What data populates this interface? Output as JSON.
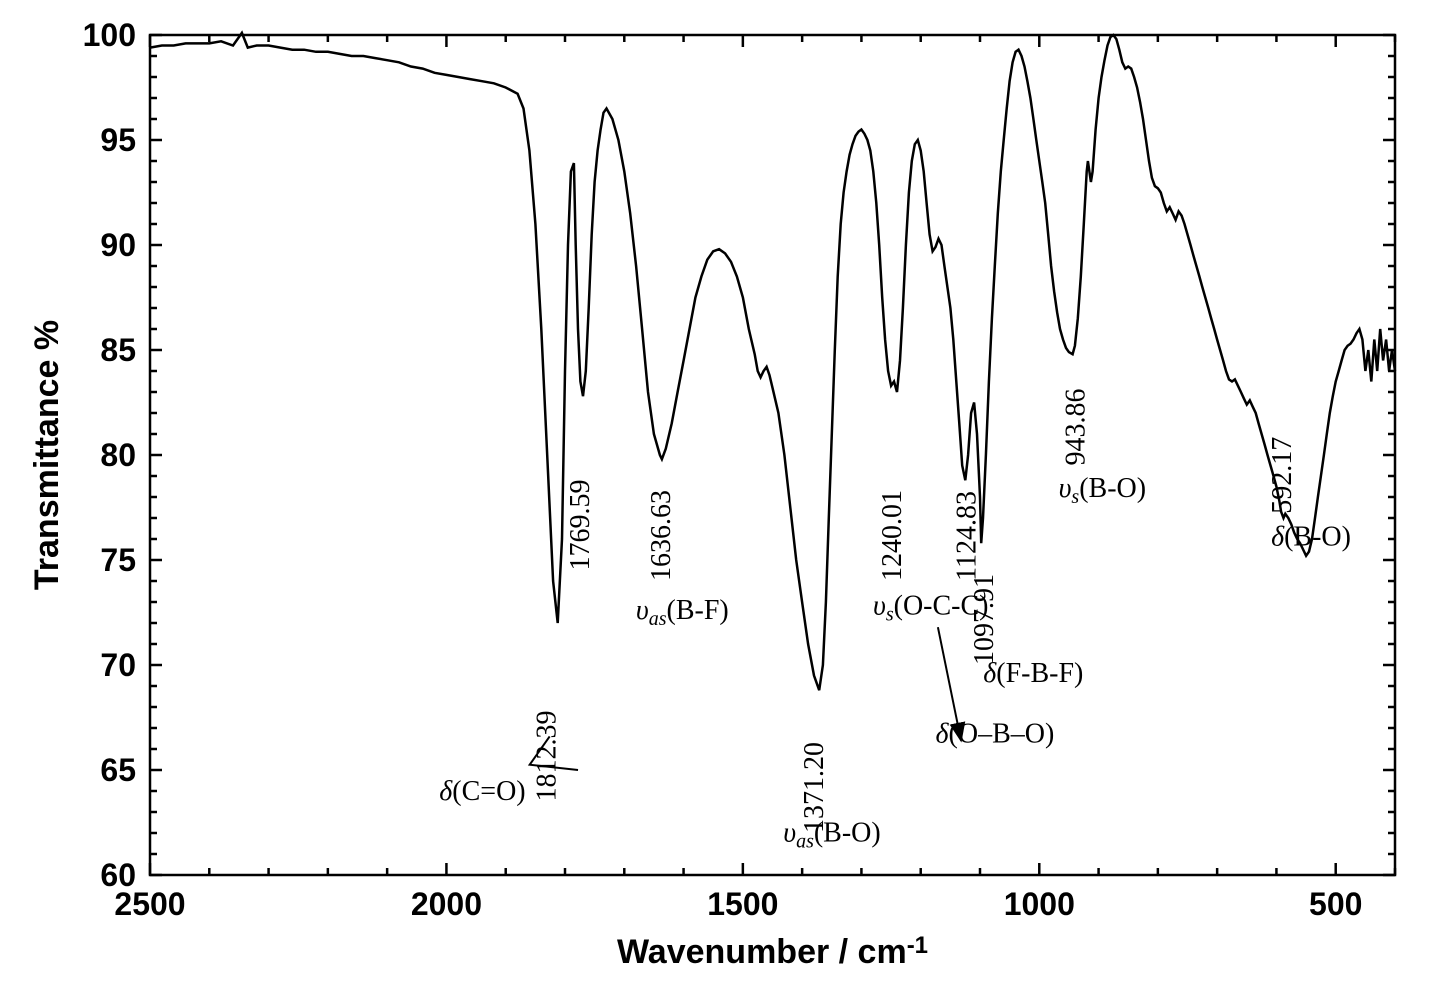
{
  "chart": {
    "type": "line",
    "background_color": "#ffffff",
    "line_color": "#000000",
    "line_width": 2.5,
    "axis_color": "#000000",
    "axis_width": 2.5,
    "tick_length": 12,
    "minor_tick_length": 7,
    "tick_width": 2.5,
    "font_family_axis": "Arial",
    "font_family_labels": "Times New Roman",
    "x": {
      "label": "Wavenumber / cm",
      "label_super": "-1",
      "min": 2500,
      "max": 400,
      "ticks": [
        2500,
        2000,
        1500,
        1000,
        500
      ],
      "minor_step": 100,
      "fontsize_label": 34,
      "fontsize_tick": 32
    },
    "y": {
      "label": "Transmittance %",
      "min": 60,
      "max": 100,
      "ticks": [
        60,
        65,
        70,
        75,
        80,
        85,
        90,
        95,
        100
      ],
      "minor_step": 1,
      "fontsize_label": 34,
      "fontsize_tick": 32
    },
    "data": [
      [
        2500,
        99.4
      ],
      [
        2480,
        99.5
      ],
      [
        2460,
        99.5
      ],
      [
        2440,
        99.6
      ],
      [
        2420,
        99.6
      ],
      [
        2400,
        99.6
      ],
      [
        2380,
        99.7
      ],
      [
        2360,
        99.5
      ],
      [
        2345,
        100.1
      ],
      [
        2335,
        99.4
      ],
      [
        2320,
        99.5
      ],
      [
        2300,
        99.5
      ],
      [
        2280,
        99.4
      ],
      [
        2260,
        99.3
      ],
      [
        2240,
        99.3
      ],
      [
        2220,
        99.2
      ],
      [
        2200,
        99.2
      ],
      [
        2180,
        99.1
      ],
      [
        2160,
        99.0
      ],
      [
        2140,
        99.0
      ],
      [
        2120,
        98.9
      ],
      [
        2100,
        98.8
      ],
      [
        2080,
        98.7
      ],
      [
        2060,
        98.5
      ],
      [
        2040,
        98.4
      ],
      [
        2020,
        98.2
      ],
      [
        2000,
        98.1
      ],
      [
        1980,
        98.0
      ],
      [
        1960,
        97.9
      ],
      [
        1940,
        97.8
      ],
      [
        1920,
        97.7
      ],
      [
        1900,
        97.5
      ],
      [
        1880,
        97.2
      ],
      [
        1870,
        96.5
      ],
      [
        1860,
        94.5
      ],
      [
        1850,
        91.0
      ],
      [
        1840,
        86.0
      ],
      [
        1830,
        80.0
      ],
      [
        1820,
        74.0
      ],
      [
        1812.39,
        72.0
      ],
      [
        1805,
        76.0
      ],
      [
        1800,
        84.0
      ],
      [
        1795,
        90.0
      ],
      [
        1790,
        93.5
      ],
      [
        1785,
        93.9
      ],
      [
        1782,
        90.0
      ],
      [
        1778,
        86.0
      ],
      [
        1774,
        83.5
      ],
      [
        1769.59,
        82.8
      ],
      [
        1765,
        84.0
      ],
      [
        1760,
        87.0
      ],
      [
        1755,
        90.5
      ],
      [
        1750,
        93.0
      ],
      [
        1745,
        94.5
      ],
      [
        1740,
        95.5
      ],
      [
        1735,
        96.3
      ],
      [
        1730,
        96.5
      ],
      [
        1720,
        96.0
      ],
      [
        1710,
        95.0
      ],
      [
        1700,
        93.5
      ],
      [
        1690,
        91.5
      ],
      [
        1680,
        89.0
      ],
      [
        1670,
        86.0
      ],
      [
        1660,
        83.0
      ],
      [
        1650,
        81.0
      ],
      [
        1640,
        80.0
      ],
      [
        1636.63,
        79.8
      ],
      [
        1630,
        80.3
      ],
      [
        1620,
        81.5
      ],
      [
        1610,
        83.0
      ],
      [
        1600,
        84.5
      ],
      [
        1590,
        86.0
      ],
      [
        1580,
        87.5
      ],
      [
        1570,
        88.5
      ],
      [
        1560,
        89.3
      ],
      [
        1550,
        89.7
      ],
      [
        1540,
        89.8
      ],
      [
        1530,
        89.6
      ],
      [
        1520,
        89.2
      ],
      [
        1510,
        88.5
      ],
      [
        1500,
        87.5
      ],
      [
        1490,
        86.0
      ],
      [
        1480,
        84.8
      ],
      [
        1475,
        84.0
      ],
      [
        1470,
        83.7
      ],
      [
        1465,
        84.0
      ],
      [
        1460,
        84.2
      ],
      [
        1455,
        83.8
      ],
      [
        1450,
        83.2
      ],
      [
        1440,
        82.0
      ],
      [
        1430,
        80.0
      ],
      [
        1420,
        77.5
      ],
      [
        1410,
        75.0
      ],
      [
        1400,
        73.0
      ],
      [
        1390,
        71.0
      ],
      [
        1380,
        69.5
      ],
      [
        1371.2,
        68.8
      ],
      [
        1365,
        70.0
      ],
      [
        1360,
        73.0
      ],
      [
        1355,
        77.0
      ],
      [
        1350,
        81.0
      ],
      [
        1345,
        85.0
      ],
      [
        1340,
        88.5
      ],
      [
        1335,
        91.0
      ],
      [
        1330,
        92.5
      ],
      [
        1325,
        93.5
      ],
      [
        1320,
        94.3
      ],
      [
        1315,
        94.8
      ],
      [
        1310,
        95.2
      ],
      [
        1305,
        95.4
      ],
      [
        1300,
        95.5
      ],
      [
        1295,
        95.3
      ],
      [
        1290,
        95.0
      ],
      [
        1285,
        94.5
      ],
      [
        1280,
        93.5
      ],
      [
        1275,
        92.0
      ],
      [
        1270,
        90.0
      ],
      [
        1265,
        87.5
      ],
      [
        1260,
        85.5
      ],
      [
        1255,
        84.0
      ],
      [
        1250,
        83.3
      ],
      [
        1245,
        83.5
      ],
      [
        1240.01,
        83.0
      ],
      [
        1235,
        84.5
      ],
      [
        1230,
        87.0
      ],
      [
        1225,
        90.0
      ],
      [
        1220,
        92.5
      ],
      [
        1215,
        94.0
      ],
      [
        1210,
        94.8
      ],
      [
        1205,
        95.0
      ],
      [
        1200,
        94.5
      ],
      [
        1195,
        93.5
      ],
      [
        1190,
        92.0
      ],
      [
        1185,
        90.5
      ],
      [
        1180,
        89.7
      ],
      [
        1175,
        89.9
      ],
      [
        1170,
        90.3
      ],
      [
        1165,
        90.0
      ],
      [
        1160,
        89.0
      ],
      [
        1155,
        88.0
      ],
      [
        1150,
        87.0
      ],
      [
        1145,
        85.5
      ],
      [
        1140,
        83.5
      ],
      [
        1135,
        81.5
      ],
      [
        1130,
        79.5
      ],
      [
        1124.83,
        78.8
      ],
      [
        1120,
        80.0
      ],
      [
        1115,
        82.0
      ],
      [
        1110,
        82.5
      ],
      [
        1105,
        81.0
      ],
      [
        1100,
        78.0
      ],
      [
        1097.91,
        75.8
      ],
      [
        1095,
        77.0
      ],
      [
        1090,
        80.0
      ],
      [
        1085,
        83.5
      ],
      [
        1080,
        86.5
      ],
      [
        1075,
        89.0
      ],
      [
        1070,
        91.5
      ],
      [
        1065,
        93.5
      ],
      [
        1060,
        95.0
      ],
      [
        1055,
        96.5
      ],
      [
        1050,
        97.8
      ],
      [
        1045,
        98.7
      ],
      [
        1040,
        99.2
      ],
      [
        1035,
        99.3
      ],
      [
        1030,
        99.0
      ],
      [
        1025,
        98.5
      ],
      [
        1020,
        97.8
      ],
      [
        1015,
        97.0
      ],
      [
        1010,
        96.0
      ],
      [
        1005,
        95.0
      ],
      [
        1000,
        94.0
      ],
      [
        995,
        93.0
      ],
      [
        990,
        92.0
      ],
      [
        985,
        90.5
      ],
      [
        980,
        89.0
      ],
      [
        975,
        87.8
      ],
      [
        970,
        86.8
      ],
      [
        965,
        86.0
      ],
      [
        960,
        85.5
      ],
      [
        955,
        85.1
      ],
      [
        950,
        84.9
      ],
      [
        943.86,
        84.8
      ],
      [
        940,
        85.2
      ],
      [
        935,
        86.5
      ],
      [
        930,
        88.5
      ],
      [
        925,
        91.0
      ],
      [
        920,
        93.5
      ],
      [
        918,
        94.0
      ],
      [
        913,
        93.0
      ],
      [
        910,
        93.5
      ],
      [
        905,
        95.5
      ],
      [
        900,
        97.0
      ],
      [
        895,
        98.0
      ],
      [
        890,
        98.8
      ],
      [
        885,
        99.5
      ],
      [
        880,
        99.9
      ],
      [
        875,
        100.0
      ],
      [
        870,
        99.8
      ],
      [
        865,
        99.3
      ],
      [
        860,
        98.7
      ],
      [
        855,
        98.4
      ],
      [
        850,
        98.5
      ],
      [
        845,
        98.4
      ],
      [
        840,
        98.0
      ],
      [
        835,
        97.5
      ],
      [
        830,
        96.8
      ],
      [
        825,
        96.0
      ],
      [
        820,
        95.0
      ],
      [
        815,
        94.0
      ],
      [
        810,
        93.2
      ],
      [
        805,
        92.8
      ],
      [
        800,
        92.7
      ],
      [
        795,
        92.5
      ],
      [
        790,
        92.0
      ],
      [
        785,
        91.6
      ],
      [
        780,
        91.8
      ],
      [
        775,
        91.5
      ],
      [
        770,
        91.2
      ],
      [
        765,
        91.6
      ],
      [
        760,
        91.4
      ],
      [
        755,
        91.0
      ],
      [
        750,
        90.5
      ],
      [
        745,
        90.0
      ],
      [
        740,
        89.5
      ],
      [
        735,
        89.0
      ],
      [
        730,
        88.5
      ],
      [
        725,
        88.0
      ],
      [
        720,
        87.5
      ],
      [
        715,
        87.0
      ],
      [
        710,
        86.5
      ],
      [
        705,
        86.0
      ],
      [
        700,
        85.5
      ],
      [
        695,
        85.0
      ],
      [
        690,
        84.5
      ],
      [
        685,
        84.0
      ],
      [
        680,
        83.6
      ],
      [
        675,
        83.5
      ],
      [
        670,
        83.6
      ],
      [
        665,
        83.3
      ],
      [
        660,
        83.0
      ],
      [
        655,
        82.7
      ],
      [
        650,
        82.4
      ],
      [
        645,
        82.6
      ],
      [
        640,
        82.3
      ],
      [
        635,
        82.0
      ],
      [
        630,
        81.5
      ],
      [
        625,
        81.0
      ],
      [
        620,
        80.5
      ],
      [
        615,
        80.0
      ],
      [
        610,
        79.5
      ],
      [
        605,
        79.0
      ],
      [
        600,
        78.5
      ],
      [
        595,
        77.8
      ],
      [
        592.17,
        77.3
      ],
      [
        588,
        77.0
      ],
      [
        585,
        77.2
      ],
      [
        580,
        77.0
      ],
      [
        575,
        76.7
      ],
      [
        570,
        76.3
      ],
      [
        565,
        76.0
      ],
      [
        560,
        75.8
      ],
      [
        555,
        75.5
      ],
      [
        550,
        75.2
      ],
      [
        545,
        75.4
      ],
      [
        540,
        76.0
      ],
      [
        535,
        77.0
      ],
      [
        530,
        78.0
      ],
      [
        525,
        79.0
      ],
      [
        520,
        80.0
      ],
      [
        515,
        81.0
      ],
      [
        510,
        82.0
      ],
      [
        505,
        82.8
      ],
      [
        500,
        83.5
      ],
      [
        495,
        84.0
      ],
      [
        490,
        84.5
      ],
      [
        485,
        85.0
      ],
      [
        480,
        85.2
      ],
      [
        475,
        85.3
      ],
      [
        470,
        85.5
      ],
      [
        465,
        85.8
      ],
      [
        460,
        86.0
      ],
      [
        455,
        85.5
      ],
      [
        450,
        84.0
      ],
      [
        445,
        85.0
      ],
      [
        440,
        83.5
      ],
      [
        435,
        85.5
      ],
      [
        430,
        84.0
      ],
      [
        425,
        86.0
      ],
      [
        420,
        84.5
      ],
      [
        415,
        85.5
      ],
      [
        410,
        84.0
      ],
      [
        405,
        85.0
      ],
      [
        400,
        84.0
      ]
    ],
    "peak_annotations": [
      {
        "value": "1812.39",
        "mode_prefix": "δ",
        "mode_sub": "",
        "mode_body": "(C=O)",
        "wn": 1812.39,
        "t": 72.0,
        "group": "A"
      },
      {
        "value": "1769.59",
        "mode_prefix": "",
        "mode_sub": "",
        "mode_body": "",
        "wn": 1769.59,
        "t": 82.8,
        "group": "A"
      },
      {
        "value": "1636.63",
        "mode_prefix": "υ",
        "mode_sub": "as",
        "mode_body": "(B-F)",
        "wn": 1636.63,
        "t": 79.8,
        "group": "B"
      },
      {
        "value": "1371.20",
        "mode_prefix": "υ",
        "mode_sub": "as",
        "mode_body": "(B-O)",
        "wn": 1371.2,
        "t": 68.8,
        "group": "C"
      },
      {
        "value": "1240.01",
        "mode_prefix": "υ",
        "mode_sub": "s",
        "mode_body": "(O-C-C)",
        "wn": 1240.01,
        "t": 83.0,
        "group": "D"
      },
      {
        "value": "1124.83",
        "mode_prefix": "δ",
        "mode_sub": "",
        "mode_body": "(O–B–O)",
        "wn": 1124.83,
        "t": 78.8,
        "group": "E"
      },
      {
        "value": "1097.91",
        "mode_prefix": "δ",
        "mode_sub": "",
        "mode_body": "(F-B-F)",
        "wn": 1097.91,
        "t": 75.8,
        "group": "F"
      },
      {
        "value": "943.86",
        "mode_prefix": "υ",
        "mode_sub": "s",
        "mode_body": "(B-O)",
        "wn": 943.86,
        "t": 84.8,
        "group": "G"
      },
      {
        "value": "592.17",
        "mode_prefix": "δ",
        "mode_sub": "",
        "mode_body": "(B-O)",
        "wn": 592.17,
        "t": 77.3,
        "group": "H"
      }
    ]
  }
}
